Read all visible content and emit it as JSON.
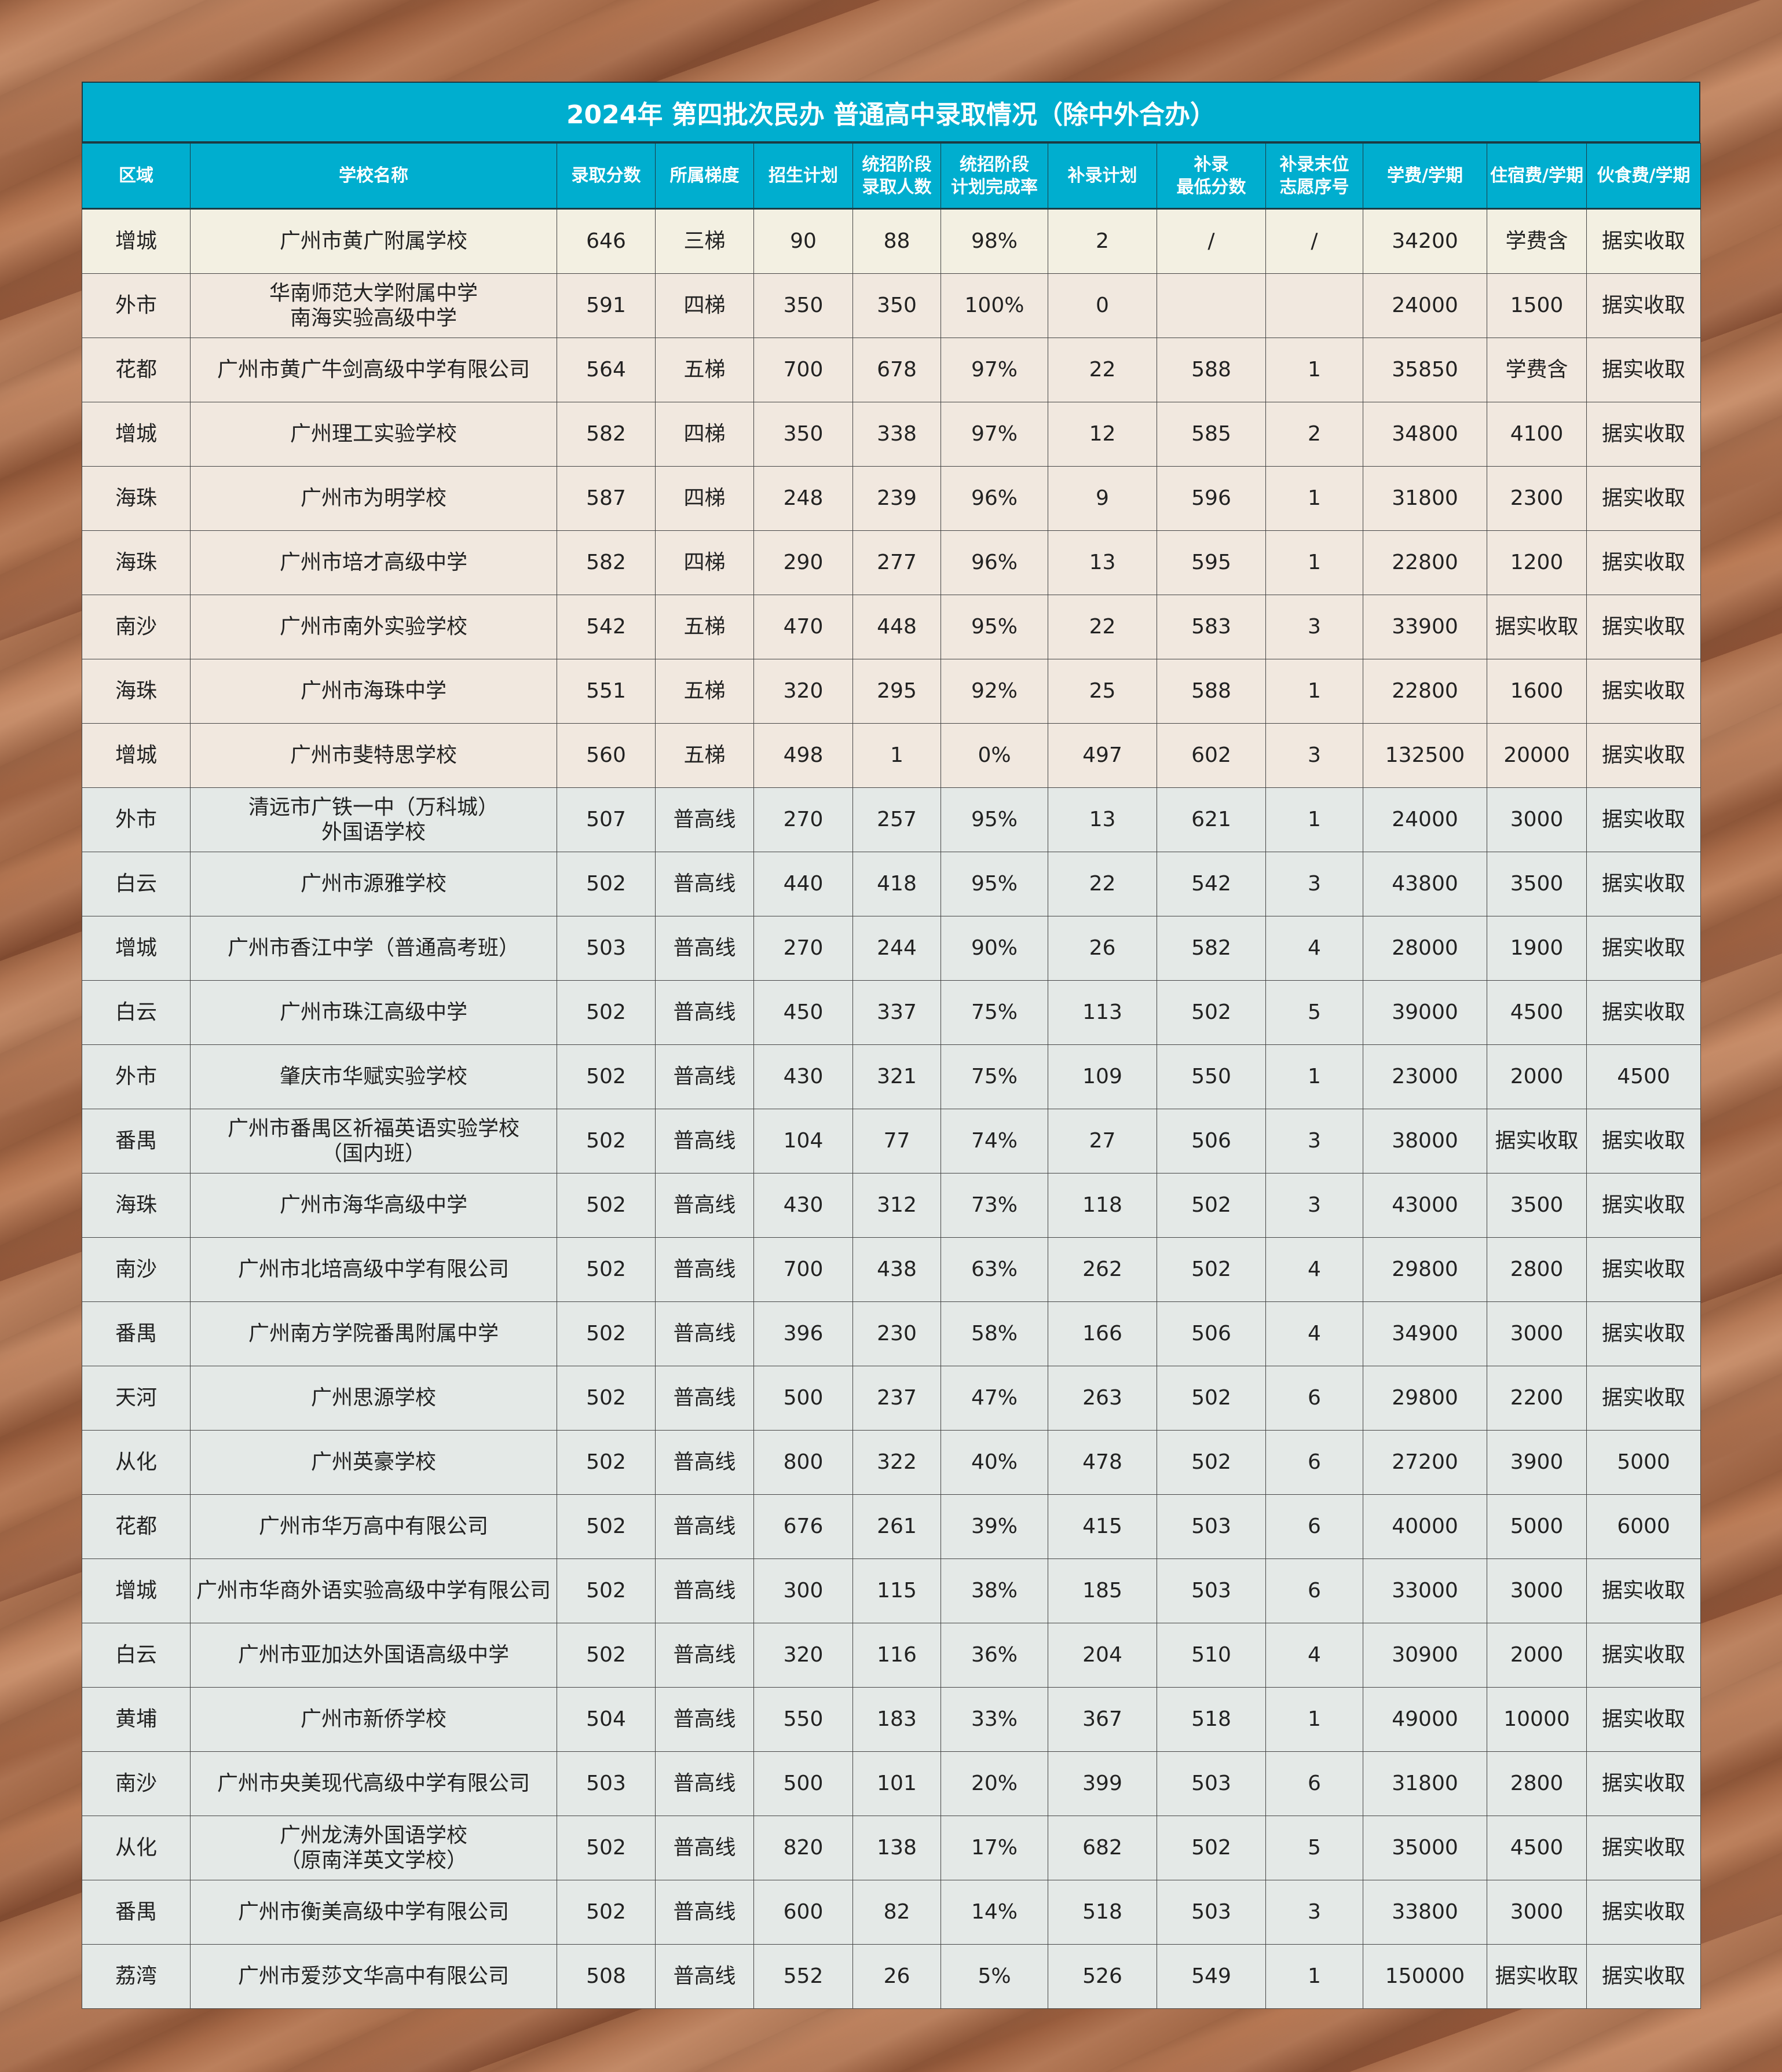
{
  "title": "2024年  第四批次民办  普通高中录取情况（除中外合办）",
  "colors": {
    "header_bg": "#00aecf",
    "row_group_1": "#f3f0e2",
    "row_group_2": "#f1e8df",
    "row_group_3": "#e4e9e7"
  },
  "columns": [
    "区域",
    "学校名称",
    "录取分数",
    "所属梯度",
    "招生计划",
    "统招阶段\n录取人数",
    "统招阶段\n计划完成率",
    "补录计划",
    "补录\n最低分数",
    "补录末位\n志愿序号",
    "学费/学期",
    "住宿费/学期",
    "伙食费/学期"
  ],
  "rows": [
    [
      "增城",
      "广州市黄广附属学校",
      "646",
      "三梯",
      "90",
      "88",
      "98%",
      "2",
      "/",
      "/",
      "34200",
      "学费含",
      "据实收取"
    ],
    [
      "外市",
      "华南师范大学附属中学\n南海实验高级中学",
      "591",
      "四梯",
      "350",
      "350",
      "100%",
      "0",
      "",
      "",
      "24000",
      "1500",
      "据实收取"
    ],
    [
      "花都",
      "广州市黄广牛剑高级中学有限公司",
      "564",
      "五梯",
      "700",
      "678",
      "97%",
      "22",
      "588",
      "1",
      "35850",
      "学费含",
      "据实收取"
    ],
    [
      "增城",
      "广州理工实验学校",
      "582",
      "四梯",
      "350",
      "338",
      "97%",
      "12",
      "585",
      "2",
      "34800",
      "4100",
      "据实收取"
    ],
    [
      "海珠",
      "广州市为明学校",
      "587",
      "四梯",
      "248",
      "239",
      "96%",
      "9",
      "596",
      "1",
      "31800",
      "2300",
      "据实收取"
    ],
    [
      "海珠",
      "广州市培才高级中学",
      "582",
      "四梯",
      "290",
      "277",
      "96%",
      "13",
      "595",
      "1",
      "22800",
      "1200",
      "据实收取"
    ],
    [
      "南沙",
      "广州市南外实验学校",
      "542",
      "五梯",
      "470",
      "448",
      "95%",
      "22",
      "583",
      "3",
      "33900",
      "据实收取",
      "据实收取"
    ],
    [
      "海珠",
      "广州市海珠中学",
      "551",
      "五梯",
      "320",
      "295",
      "92%",
      "25",
      "588",
      "1",
      "22800",
      "1600",
      "据实收取"
    ],
    [
      "增城",
      "广州市斐特思学校",
      "560",
      "五梯",
      "498",
      "1",
      "0%",
      "497",
      "602",
      "3",
      "132500",
      "20000",
      "据实收取"
    ],
    [
      "外市",
      "清远市广铁一中（万科城）\n外国语学校",
      "507",
      "普高线",
      "270",
      "257",
      "95%",
      "13",
      "621",
      "1",
      "24000",
      "3000",
      "据实收取"
    ],
    [
      "白云",
      "广州市源雅学校",
      "502",
      "普高线",
      "440",
      "418",
      "95%",
      "22",
      "542",
      "3",
      "43800",
      "3500",
      "据实收取"
    ],
    [
      "增城",
      "广州市香江中学（普通高考班）",
      "503",
      "普高线",
      "270",
      "244",
      "90%",
      "26",
      "582",
      "4",
      "28000",
      "1900",
      "据实收取"
    ],
    [
      "白云",
      "广州市珠江高级中学",
      "502",
      "普高线",
      "450",
      "337",
      "75%",
      "113",
      "502",
      "5",
      "39000",
      "4500",
      "据实收取"
    ],
    [
      "外市",
      "肇庆市华赋实验学校",
      "502",
      "普高线",
      "430",
      "321",
      "75%",
      "109",
      "550",
      "1",
      "23000",
      "2000",
      "4500"
    ],
    [
      "番禺",
      "广州市番禺区祈福英语实验学校\n（国内班）",
      "502",
      "普高线",
      "104",
      "77",
      "74%",
      "27",
      "506",
      "3",
      "38000",
      "据实收取",
      "据实收取"
    ],
    [
      "海珠",
      "广州市海华高级中学",
      "502",
      "普高线",
      "430",
      "312",
      "73%",
      "118",
      "502",
      "3",
      "43000",
      "3500",
      "据实收取"
    ],
    [
      "南沙",
      "广州市北培高级中学有限公司",
      "502",
      "普高线",
      "700",
      "438",
      "63%",
      "262",
      "502",
      "4",
      "29800",
      "2800",
      "据实收取"
    ],
    [
      "番禺",
      "广州南方学院番禺附属中学",
      "502",
      "普高线",
      "396",
      "230",
      "58%",
      "166",
      "506",
      "4",
      "34900",
      "3000",
      "据实收取"
    ],
    [
      "天河",
      "广州思源学校",
      "502",
      "普高线",
      "500",
      "237",
      "47%",
      "263",
      "502",
      "6",
      "29800",
      "2200",
      "据实收取"
    ],
    [
      "从化",
      "广州英豪学校",
      "502",
      "普高线",
      "800",
      "322",
      "40%",
      "478",
      "502",
      "6",
      "27200",
      "3900",
      "5000"
    ],
    [
      "花都",
      "广州市华万高中有限公司",
      "502",
      "普高线",
      "676",
      "261",
      "39%",
      "415",
      "503",
      "6",
      "40000",
      "5000",
      "6000"
    ],
    [
      "增城",
      "广州市华商外语实验高级中学有限公司",
      "502",
      "普高线",
      "300",
      "115",
      "38%",
      "185",
      "503",
      "6",
      "33000",
      "3000",
      "据实收取"
    ],
    [
      "白云",
      "广州市亚加达外国语高级中学",
      "502",
      "普高线",
      "320",
      "116",
      "36%",
      "204",
      "510",
      "4",
      "30900",
      "2000",
      "据实收取"
    ],
    [
      "黄埔",
      "广州市新侨学校",
      "504",
      "普高线",
      "550",
      "183",
      "33%",
      "367",
      "518",
      "1",
      "49000",
      "10000",
      "据实收取"
    ],
    [
      "南沙",
      "广州市央美现代高级中学有限公司",
      "503",
      "普高线",
      "500",
      "101",
      "20%",
      "399",
      "503",
      "6",
      "31800",
      "2800",
      "据实收取"
    ],
    [
      "从化",
      "广州龙涛外国语学校\n（原南洋英文学校）",
      "502",
      "普高线",
      "820",
      "138",
      "17%",
      "682",
      "502",
      "5",
      "35000",
      "4500",
      "据实收取"
    ],
    [
      "番禺",
      "广州市衡美高级中学有限公司",
      "502",
      "普高线",
      "600",
      "82",
      "14%",
      "518",
      "503",
      "3",
      "33800",
      "3000",
      "据实收取"
    ],
    [
      "荔湾",
      "广州市爱莎文华高中有限公司",
      "508",
      "普高线",
      "552",
      "26",
      "5%",
      "526",
      "549",
      "1",
      "150000",
      "据实收取",
      "据实收取"
    ]
  ]
}
